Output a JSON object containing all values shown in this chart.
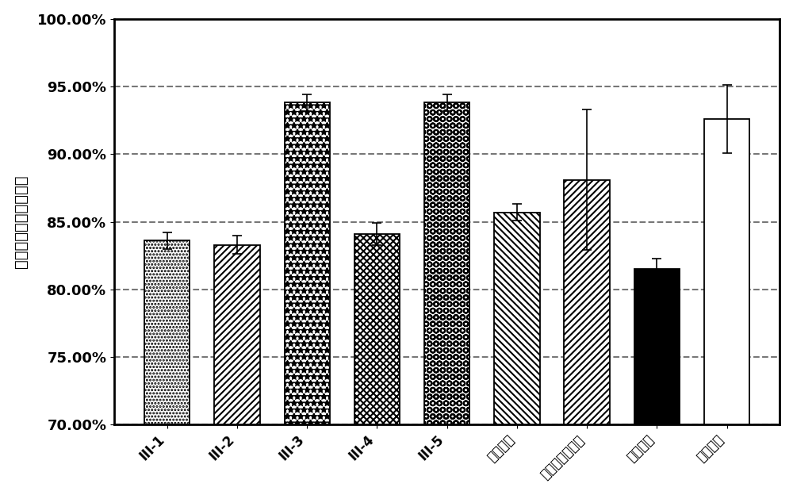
{
  "categories": [
    "III-1",
    "III-2",
    "III-3",
    "III-4",
    "III-5",
    "阳奇谬素",
    "琥珀酸普卡必利",
    "模型对照",
    "正常对照"
  ],
  "values": [
    83.6,
    83.3,
    93.8,
    84.1,
    93.8,
    85.7,
    88.1,
    81.5,
    92.6
  ],
  "errors": [
    0.6,
    0.7,
    0.6,
    0.8,
    0.6,
    0.6,
    5.2,
    0.8,
    2.5
  ],
  "ylim": [
    70.0,
    100.0
  ],
  "yticks": [
    70.0,
    75.0,
    80.0,
    85.0,
    90.0,
    95.0,
    100.0
  ],
  "ylabel": "炭末推进率（百分比）",
  "bar_width": 0.65,
  "facecolors": [
    "white",
    "white",
    "white",
    "white",
    "white",
    "white",
    "white",
    "black",
    "white"
  ],
  "error_capsize": 4,
  "figsize": [
    10.0,
    6.24
  ],
  "dpi": 100,
  "hatch_patterns": [
    "....",
    "\\\\\\\\",
    "oooo",
    "////",
    "xxxx",
    "////",
    "\\\\\\\\",
    "",
    ""
  ],
  "grid_color": "#555555",
  "grid_linestyle": "--",
  "grid_linewidth": 1.5
}
